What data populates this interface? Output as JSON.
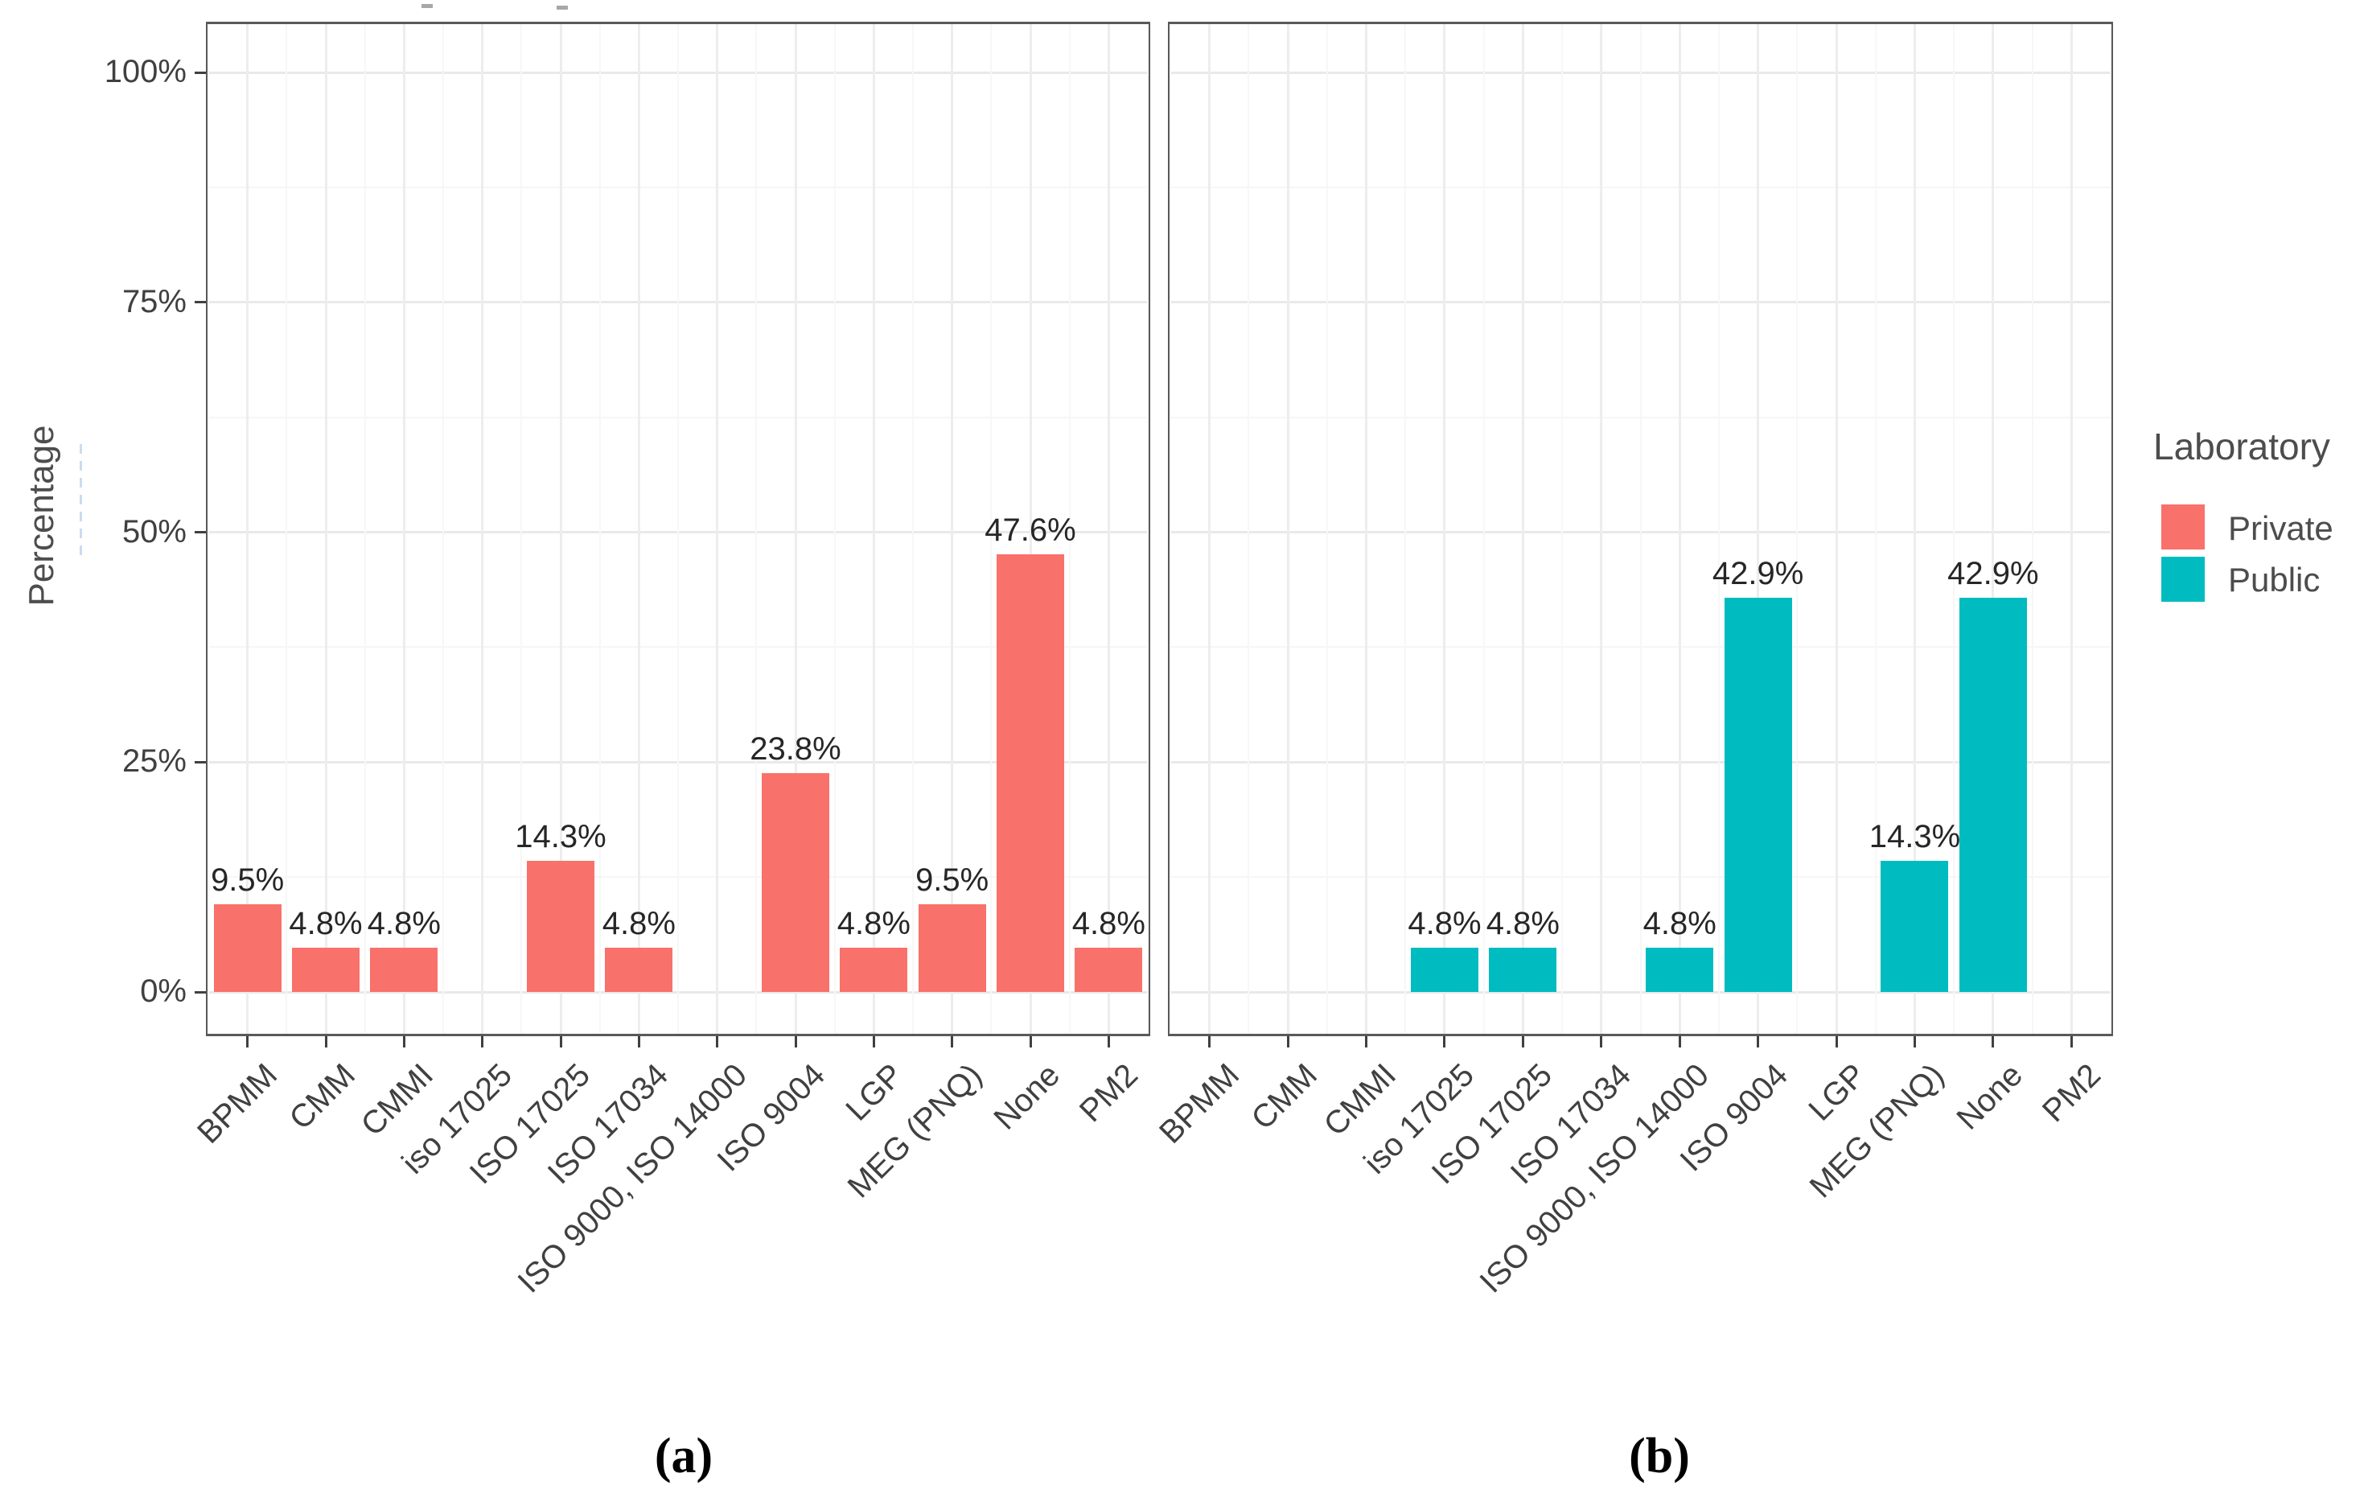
{
  "figure": {
    "ylabel": "Percentage",
    "y_ticks": [
      {
        "label": "0%",
        "value": 0
      },
      {
        "label": "25%",
        "value": 25
      },
      {
        "label": "50%",
        "value": 50
      },
      {
        "label": "75%",
        "value": 75
      },
      {
        "label": "100%",
        "value": 100
      }
    ],
    "legend": {
      "title": "Laboratory",
      "entries": [
        {
          "label": "Private",
          "color": "#f8716a"
        },
        {
          "label": "Public",
          "color": "#00bcc0"
        }
      ]
    },
    "captions": {
      "a": "(a)",
      "b": "(b)"
    }
  },
  "chart_data": [
    {
      "type": "bar",
      "panel": "a",
      "series_name": "Private",
      "color": "#f8716a",
      "categories": [
        "BPMM",
        "CMM",
        "CMMI",
        "iso 17025",
        "ISO 17025",
        "ISO 17034",
        "ISO 9000, ISO 14000",
        "ISO 9004",
        "LGP",
        "MEG (PNQ)",
        "None",
        "PM2"
      ],
      "values": [
        9.5,
        4.8,
        4.8,
        0,
        14.3,
        4.8,
        0,
        23.8,
        4.8,
        9.5,
        47.6,
        4.8
      ],
      "labels": [
        "9.5%",
        "4.8%",
        "4.8%",
        "",
        "14.3%",
        "4.8%",
        "",
        "23.8%",
        "4.8%",
        "9.5%",
        "47.6%",
        "4.8%"
      ],
      "xlabel": "",
      "ylabel": "Percentage",
      "ylim": [
        0,
        105
      ],
      "grid": true,
      "legend_position": "right"
    },
    {
      "type": "bar",
      "panel": "b",
      "series_name": "Public",
      "color": "#00bcc0",
      "categories": [
        "BPMM",
        "CMM",
        "CMMI",
        "iso 17025",
        "ISO 17025",
        "ISO 17034",
        "ISO 9000, ISO 14000",
        "ISO 9004",
        "LGP",
        "MEG (PNQ)",
        "None",
        "PM2"
      ],
      "values": [
        0,
        0,
        0,
        4.8,
        4.8,
        0,
        4.8,
        42.9,
        0,
        14.3,
        42.9,
        0
      ],
      "labels": [
        "",
        "",
        "",
        "4.8%",
        "4.8%",
        "",
        "4.8%",
        "42.9%",
        "",
        "14.3%",
        "42.9%",
        ""
      ],
      "xlabel": "",
      "ylabel": "Percentage",
      "ylim": [
        0,
        105
      ],
      "grid": true,
      "legend_position": "right"
    }
  ]
}
